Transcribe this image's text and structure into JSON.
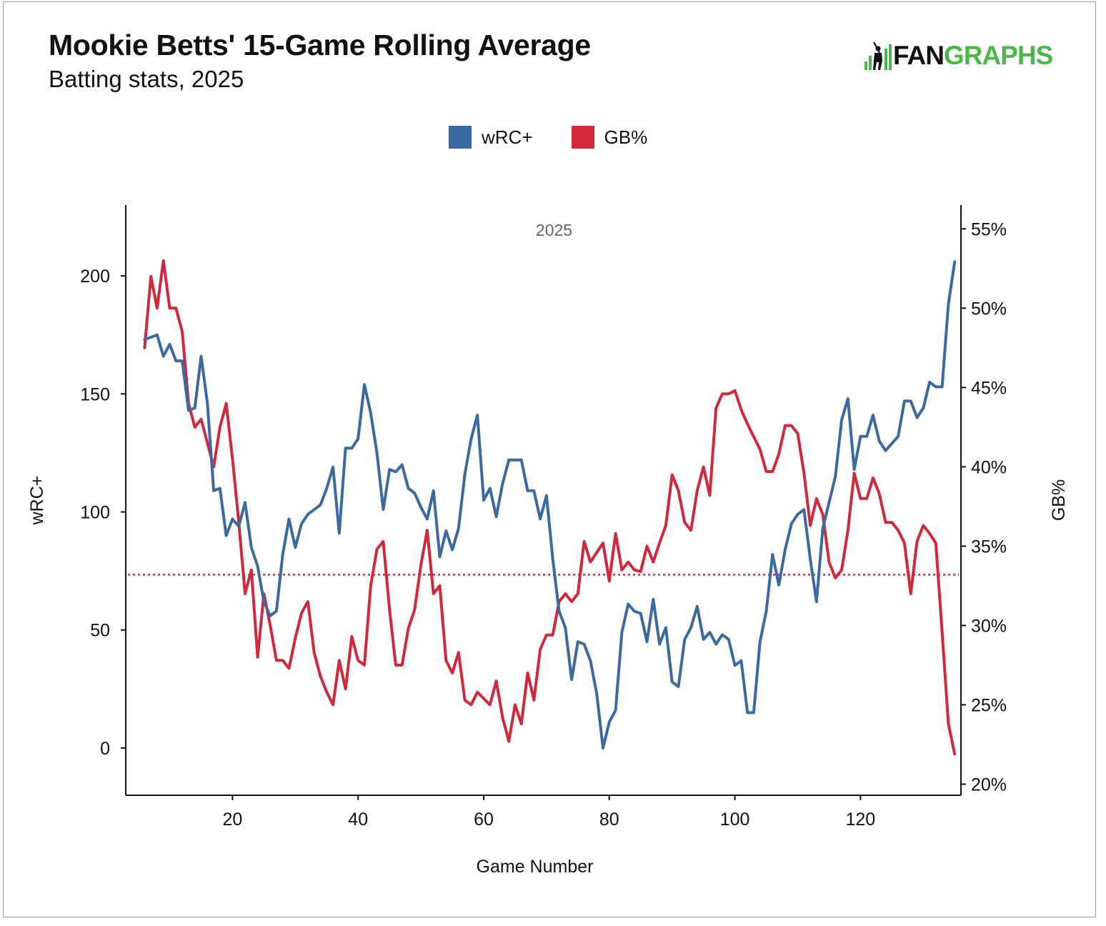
{
  "title": "Mookie Betts' 15-Game Rolling Average",
  "subtitle": "Batting stats, 2025",
  "logo": {
    "text_left": "FAN",
    "text_right": "GRAPHS",
    "accent": "#4cb748"
  },
  "legend": [
    {
      "label": "wRC+",
      "color": "#3a6aa0"
    },
    {
      "label": "GB%",
      "color": "#d1293a"
    }
  ],
  "chart_data": {
    "type": "line",
    "panel_label": "2025",
    "xlabel": "Game Number",
    "ylabel_left": "wRC+",
    "ylabel_right": "GB%",
    "xlim": [
      3,
      136
    ],
    "ylim_left": [
      -20,
      230
    ],
    "ylim_right": [
      19.3,
      56.5
    ],
    "xticks": [
      20,
      40,
      60,
      80,
      100,
      120
    ],
    "yticks_left": [
      0,
      50,
      100,
      150,
      200
    ],
    "yticks_right": [
      20,
      25,
      30,
      35,
      40,
      45,
      50,
      55
    ],
    "yticklabels_right": [
      "20%",
      "25%",
      "30%",
      "35%",
      "40%",
      "45%",
      "50%",
      "55%"
    ],
    "reference_line": {
      "axis": "right",
      "value": 33.2,
      "color": "#d1293a",
      "style": "dotted"
    },
    "grid": false,
    "legend_position": "top",
    "x": [
      6,
      7,
      8,
      9,
      10,
      11,
      12,
      13,
      14,
      15,
      16,
      17,
      18,
      19,
      20,
      21,
      22,
      23,
      24,
      25,
      26,
      27,
      28,
      29,
      30,
      31,
      32,
      33,
      34,
      35,
      36,
      37,
      38,
      39,
      40,
      41,
      42,
      43,
      44,
      45,
      46,
      47,
      48,
      49,
      50,
      51,
      52,
      53,
      54,
      55,
      56,
      57,
      58,
      59,
      60,
      61,
      62,
      63,
      64,
      65,
      66,
      67,
      68,
      69,
      70,
      71,
      72,
      73,
      74,
      75,
      76,
      77,
      78,
      79,
      80,
      81,
      82,
      83,
      84,
      85,
      86,
      87,
      88,
      89,
      90,
      91,
      92,
      93,
      94,
      95,
      96,
      97,
      98,
      99,
      100,
      101,
      102,
      103,
      104,
      105,
      106,
      107,
      108,
      109,
      110,
      111,
      112,
      113,
      114,
      115,
      116,
      117,
      118,
      119,
      120,
      121,
      122,
      123,
      124,
      125,
      126,
      127,
      128,
      129,
      130,
      131,
      132,
      133,
      134,
      135
    ],
    "series": [
      {
        "name": "wRC+",
        "axis": "left",
        "color": "#3a6aa0",
        "values": [
          173,
          174,
          175,
          166,
          171,
          164,
          164,
          143,
          144,
          166,
          146,
          109,
          110,
          90,
          97,
          94,
          104,
          85,
          77,
          62,
          56,
          58,
          82,
          97,
          85,
          95,
          99,
          101,
          103,
          110,
          119,
          91,
          127,
          127,
          131,
          154,
          142,
          125,
          101,
          118,
          117,
          120,
          110,
          108,
          102,
          97,
          109,
          81,
          92,
          84,
          93,
          116,
          131,
          141,
          105,
          110,
          98,
          112,
          122,
          122,
          122,
          109,
          109,
          97,
          107,
          80,
          58,
          51,
          29,
          45,
          44,
          37,
          23,
          0,
          11,
          16,
          49,
          61,
          58,
          57,
          45,
          63,
          44,
          51,
          28,
          26,
          46,
          51,
          60,
          46,
          49,
          44,
          48,
          46,
          35,
          37,
          15,
          15,
          45,
          58,
          82,
          69,
          84,
          95,
          99,
          101,
          80,
          62,
          93,
          104,
          115,
          139,
          148,
          118,
          132,
          132,
          141,
          130,
          126,
          129,
          132,
          147,
          147,
          140,
          144,
          155,
          153,
          153,
          188,
          206
        ]
      },
      {
        "name": "GB%",
        "axis": "right",
        "color": "#d1293a",
        "values": [
          47.5,
          52,
          50,
          53,
          50,
          50,
          48.5,
          44,
          42.5,
          43,
          41.5,
          40,
          42.5,
          44,
          40.5,
          36.5,
          32,
          33.5,
          28,
          32,
          30,
          27.8,
          27.8,
          27.3,
          29.2,
          30.8,
          31.5,
          28.3,
          26.8,
          25.8,
          25,
          27.8,
          26,
          29.3,
          27.8,
          27.5,
          32.5,
          34.8,
          35.3,
          31,
          27.5,
          27.5,
          29.8,
          31,
          33.8,
          36,
          32,
          32.5,
          27.8,
          27,
          28.3,
          25.3,
          25,
          25.8,
          25.4,
          25,
          26.5,
          24.2,
          22.7,
          25,
          23.8,
          27,
          25.3,
          28.5,
          29.4,
          29.4,
          31.5,
          32,
          31.5,
          32,
          35.3,
          34,
          34.6,
          35.2,
          32.8,
          35.8,
          33.5,
          34,
          33.5,
          33.4,
          35,
          34,
          35.2,
          36.3,
          39.5,
          38.5,
          36.5,
          36,
          38.5,
          40,
          38.2,
          43.7,
          44.6,
          44.6,
          44.8,
          43.6,
          42.7,
          41.9,
          41.1,
          39.7,
          39.7,
          40.8,
          42.6,
          42.6,
          42.1,
          39.6,
          36.3,
          38,
          37,
          34,
          33,
          33.5,
          36,
          39.6,
          38,
          38,
          39.3,
          38.3,
          36.5,
          36.5,
          36,
          35.2,
          32,
          35.3,
          36.3,
          35.8,
          35.2,
          29.6,
          23.8,
          21.9
        ]
      }
    ]
  }
}
